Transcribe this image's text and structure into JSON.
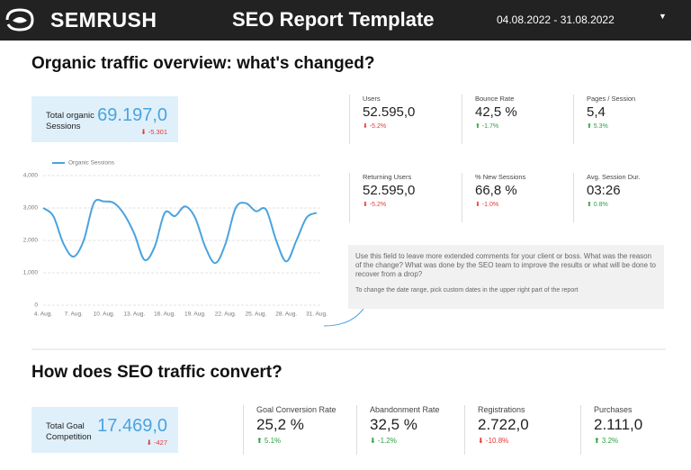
{
  "header": {
    "logo": "SEMRUSH",
    "title": "SEO Report Template",
    "date_range": "04.08.2022 - 31.08.2022"
  },
  "sections": [
    {
      "title": "Organic traffic overview: what's changed?",
      "summary": {
        "label": "Total organic Sessions",
        "value": "69.197,0",
        "delta": "⬇ -5.301",
        "delta_color": "#e53935"
      },
      "metrics": [
        {
          "label": "Users",
          "value": "52.595,0",
          "delta": "⬇ -5.2%",
          "delta_color": "#e53935"
        },
        {
          "label": "Bounce Rate",
          "value": "42,5 %",
          "delta": "⬆ -1.7%",
          "delta_color": "#2e9e44"
        },
        {
          "label": "Pages / Session",
          "value": "5,4",
          "delta": "⬆ 5.3%",
          "delta_color": "#2e9e44"
        },
        {
          "label": "Returning Users",
          "value": "52.595,0",
          "delta": "⬇ -5.2%",
          "delta_color": "#e53935"
        },
        {
          "label": "% New Sessions",
          "value": "66,8 %",
          "delta": "⬇ -1.0%",
          "delta_color": "#e53935"
        },
        {
          "label": "Avg. Session Dur.",
          "value": "03:26",
          "delta": "⬆ 0.8%",
          "delta_color": "#2e9e44"
        }
      ],
      "comment": {
        "text": "Use this field to leave more extended comments for your client or boss. What was the reason of the change? What was done by the SEO team to improve the results or what will be done to recover from a drop?",
        "note": "To change the date range, pick custom dates in the upper right part of the report"
      }
    },
    {
      "title": "How does SEO traffic convert?",
      "summary": {
        "label": "Total Goal Competition",
        "value": "17.469,0",
        "delta": "⬇ -427",
        "delta_color": "#e53935"
      },
      "metrics": [
        {
          "label": "Goal Conversion Rate",
          "value": "25,2 %",
          "delta": "⬆ 5.1%",
          "delta_color": "#2e9e44"
        },
        {
          "label": "Abandonment Rate",
          "value": "32,5 %",
          "delta": "⬇ -1.2%",
          "delta_color": "#2e9e44"
        },
        {
          "label": "Registrations",
          "value": "2.722,0",
          "delta": "⬇ -10.8%",
          "delta_color": "#e53935"
        },
        {
          "label": "Purchases",
          "value": "2.111,0",
          "delta": "⬆ 3.2%",
          "delta_color": "#2e9e44"
        }
      ]
    }
  ],
  "chart_data": {
    "type": "line",
    "categories": [
      "4. Aug.",
      null,
      null,
      "7. Aug.",
      null,
      null,
      "10. Aug.",
      null,
      null,
      "13. Aug.",
      null,
      null,
      "16. Aug.",
      null,
      null,
      "19. Aug.",
      null,
      null,
      "22. Aug.",
      null,
      null,
      "25. Aug.",
      null,
      null,
      "28. Aug.",
      null,
      null,
      "31. Aug."
    ],
    "series": [
      {
        "name": "Organic Sessions",
        "color": "#4aa3df",
        "values": [
          3000,
          2750,
          1900,
          1500,
          2000,
          3150,
          3200,
          3150,
          2800,
          2200,
          1400,
          1800,
          2850,
          2750,
          3050,
          2700,
          1800,
          1300,
          1900,
          3000,
          3150,
          2900,
          2950,
          2000,
          1350,
          2000,
          2700,
          2850
        ]
      }
    ],
    "ylim": [
      0,
      4000
    ],
    "yticks": [
      0,
      {
        "value": 1000,
        "label": "1,000"
      },
      {
        "value": 2000,
        "label": "2,000"
      },
      {
        "value": 3000,
        "label": "3,000"
      },
      {
        "value": 4000,
        "label": "4,000"
      }
    ],
    "grid": true
  }
}
